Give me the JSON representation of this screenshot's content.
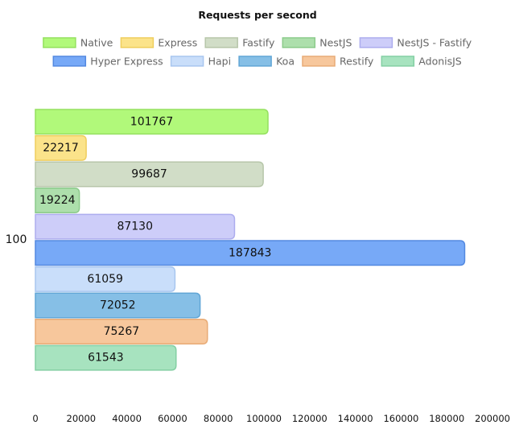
{
  "chart_data": {
    "type": "bar",
    "orientation": "horizontal",
    "title": "Requests per second",
    "categories": [
      "100"
    ],
    "series": [
      {
        "name": "Native",
        "values": [
          101767
        ],
        "fill": "#b1f97a",
        "stroke": "#95e060"
      },
      {
        "name": "Express",
        "values": [
          22217
        ],
        "fill": "#fbe38a",
        "stroke": "#efce5e"
      },
      {
        "name": "Fastify",
        "values": [
          99687
        ],
        "fill": "#d1ddc7",
        "stroke": "#b7c6aa"
      },
      {
        "name": "NestJS",
        "values": [
          19224
        ],
        "fill": "#addfac",
        "stroke": "#8ccb8b"
      },
      {
        "name": "NestJS - Fastify",
        "values": [
          87130
        ],
        "fill": "#cdcdf9",
        "stroke": "#adadee"
      },
      {
        "name": "Hyper Express",
        "values": [
          187843
        ],
        "fill": "#77a9f7",
        "stroke": "#5389e0"
      },
      {
        "name": "Hapi",
        "values": [
          61059
        ],
        "fill": "#c9defa",
        "stroke": "#a8c6ef"
      },
      {
        "name": "Koa",
        "values": [
          72052
        ],
        "fill": "#86bfe6",
        "stroke": "#61a6d6"
      },
      {
        "name": "Restify",
        "values": [
          75267
        ],
        "fill": "#f7c79c",
        "stroke": "#e8ab76"
      },
      {
        "name": "AdonisJS",
        "values": [
          61543
        ],
        "fill": "#a7e3bf",
        "stroke": "#84cfa3"
      }
    ],
    "xlim": [
      0,
      200000
    ],
    "xticks": [
      0,
      20000,
      40000,
      60000,
      80000,
      100000,
      120000,
      140000,
      160000,
      180000,
      200000
    ],
    "grid": false,
    "legend_position": "top",
    "data_labels": true
  }
}
